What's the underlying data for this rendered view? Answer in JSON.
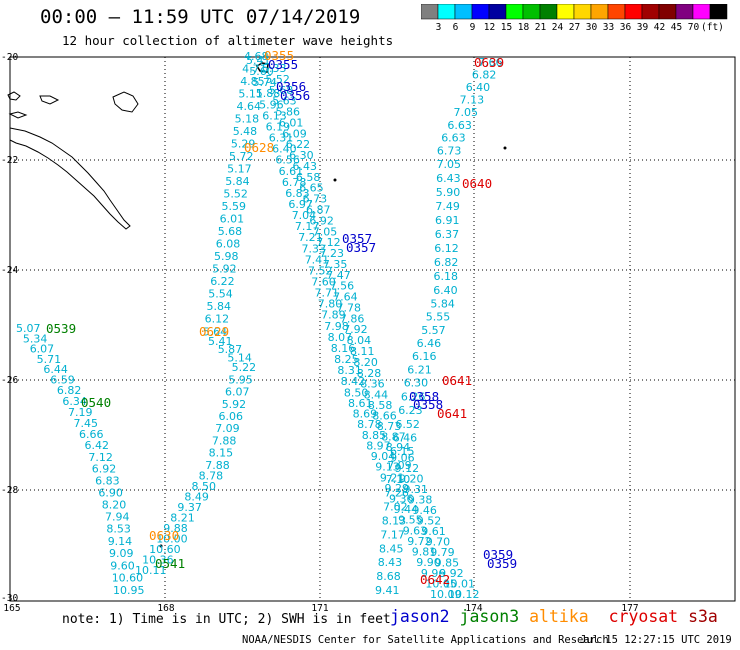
{
  "header": {
    "title": "00:00 – 11:59 UTC 07/14/2019",
    "subtitle": "12 hour collection of altimeter wave heights"
  },
  "colorbar": {
    "colors": [
      "#808080",
      "#00ffff",
      "#00bfff",
      "#0000ff",
      "#0000a0",
      "#00ff00",
      "#00bf00",
      "#008000",
      "#ffff00",
      "#ffd700",
      "#ffa500",
      "#ff4500",
      "#ff0000",
      "#a00000",
      "#800000",
      "#800080",
      "#ff00ff",
      "#000000"
    ],
    "labels": [
      "3",
      "6",
      "9",
      "12",
      "15",
      "18",
      "21",
      "24",
      "27",
      "30",
      "33",
      "36",
      "39",
      "42",
      "45",
      "70",
      "(ft)"
    ]
  },
  "axes": {
    "lat_labels": [
      "-20",
      "-22",
      "-24",
      "-26",
      "-28",
      "-30"
    ],
    "lon_labels": [
      "165",
      "168",
      "171",
      "174",
      "177"
    ]
  },
  "satellite_colors": {
    "jason2": "#0000cc",
    "jason3": "#008000",
    "altika": "#ff8c00",
    "cryosat": "#dd0000",
    "s3a": "#a00000",
    "swh": "#00b0d0"
  },
  "tracks": [
    {
      "id": "t1",
      "values": [
        "4.68",
        "4.71",
        "4.85",
        "5.11",
        "4.64",
        "5.18",
        "5.48",
        "5.29",
        "5.72",
        "5.17",
        "5.84",
        "5.52",
        "5.59",
        "6.01",
        "5.68",
        "6.08",
        "5.98",
        "5.92",
        "6.22",
        "5.54",
        "5.84",
        "6.12",
        "5.64",
        "5.41",
        "5.87",
        "5.14",
        "5.22",
        "5.95",
        "6.07",
        "5.92",
        "6.06",
        "7.09",
        "7.88",
        "8.15",
        "7.88",
        "8.78",
        "8.50",
        "8.49",
        "9.37",
        "8.21",
        "9.88",
        "10.00",
        "10.60",
        "10.36",
        "10.11"
      ]
    },
    {
      "id": "t2",
      "values": [
        "5.07",
        "5.34",
        "6.07",
        "5.71",
        "6.44",
        "6.59",
        "6.82",
        "6.34",
        "7.19",
        "7.45",
        "6.66",
        "6.42",
        "7.12",
        "6.92",
        "6.83",
        "6.90",
        "8.20",
        "7.94",
        "8.53",
        "9.14",
        "9.09",
        "9.60",
        "10.60",
        "10.95"
      ]
    },
    {
      "id": "t3",
      "values": [
        "7.66",
        "6.82",
        "6.40",
        "7.13",
        "7.05",
        "6.63",
        "6.63",
        "6.73",
        "7.05",
        "6.43",
        "5.90",
        "7.49",
        "6.91",
        "6.37",
        "6.12",
        "6.82",
        "6.18",
        "6.40",
        "5.84",
        "5.55",
        "5.57",
        "6.46",
        "6.16",
        "6.21",
        "6.30",
        "6.26",
        "6.23",
        "6.52",
        "6.46",
        "6.15",
        "7.09",
        "7.10",
        "7.26",
        "7.02",
        "8.13",
        "7.17",
        "8.45",
        "8.43",
        "8.68",
        "9.41"
      ]
    },
    {
      "id": "t4",
      "values": [
        "5.33",
        "5.52",
        "5.68",
        "5.63",
        "5.86",
        "6.01",
        "6.09",
        "6.22",
        "6.30",
        "6.43",
        "6.58",
        "6.65",
        "6.73",
        "6.87",
        "6.92",
        "7.05",
        "7.12",
        "7.23",
        "7.35",
        "7.47",
        "7.56",
        "7.64",
        "7.78",
        "7.86",
        "7.92",
        "8.04",
        "8.11",
        "8.20",
        "8.28",
        "8.36",
        "8.44",
        "8.58",
        "8.66",
        "8.73",
        "8.87",
        "8.94",
        "9.06",
        "9.12",
        "9.20",
        "9.31",
        "9.38",
        "9.46",
        "9.52",
        "9.61",
        "9.70",
        "9.79",
        "9.85",
        "9.92",
        "10.01",
        "10.12"
      ]
    },
    {
      "id": "t5",
      "values": [
        "5.41",
        "5.60",
        "5.74",
        "5.88",
        "5.96",
        "6.13",
        "6.19",
        "6.31",
        "6.40",
        "6.56",
        "6.61",
        "6.78",
        "6.83",
        "6.97",
        "7.04",
        "7.17",
        "7.21",
        "7.33",
        "7.41",
        "7.52",
        "7.60",
        "7.71",
        "7.80",
        "7.89",
        "7.98",
        "8.07",
        "8.16",
        "8.25",
        "8.31",
        "8.42",
        "8.50",
        "8.61",
        "8.69",
        "8.78",
        "8.85",
        "8.97",
        "9.04",
        "9.13",
        "9.21",
        "9.29",
        "9.36",
        "9.44",
        "9.55",
        "9.63",
        "9.72",
        "9.81",
        "9.90",
        "9.96",
        "10.05",
        "10.09"
      ]
    }
  ],
  "pass_labels": [
    {
      "id": "p1",
      "text": "0355",
      "sat": "altika"
    },
    {
      "id": "p2",
      "text": "0355",
      "sat": "jason2"
    },
    {
      "id": "p3",
      "text": "0356",
      "sat": "jason2"
    },
    {
      "id": "p4",
      "text": "0356",
      "sat": "jason2"
    },
    {
      "id": "p5",
      "text": "0639",
      "sat": "cryosat"
    },
    {
      "id": "p6",
      "text": "0628",
      "sat": "altika"
    },
    {
      "id": "p7",
      "text": "0640",
      "sat": "cryosat"
    },
    {
      "id": "p8",
      "text": "0357",
      "sat": "jason2"
    },
    {
      "id": "p9",
      "text": "0357",
      "sat": "jason2"
    },
    {
      "id": "p10",
      "text": "0539",
      "sat": "jason3"
    },
    {
      "id": "p11",
      "text": "0629",
      "sat": "altika"
    },
    {
      "id": "p12",
      "text": "0641",
      "sat": "cryosat"
    },
    {
      "id": "p13",
      "text": "0540",
      "sat": "jason3"
    },
    {
      "id": "p14",
      "text": "0358",
      "sat": "jason2"
    },
    {
      "id": "p15",
      "text": "0358",
      "sat": "jason2"
    },
    {
      "id": "p16",
      "text": "0641",
      "sat": "cryosat"
    },
    {
      "id": "p17",
      "text": "0630",
      "sat": "altika"
    },
    {
      "id": "p18",
      "text": "0541",
      "sat": "jason3"
    },
    {
      "id": "p19",
      "text": "0359",
      "sat": "jason2"
    },
    {
      "id": "p20",
      "text": "0359",
      "sat": "jason2"
    },
    {
      "id": "p21",
      "text": "0642",
      "sat": "cryosat"
    }
  ],
  "footer": {
    "note": "note: 1) Time is in UTC; 2) SWH is in feet",
    "legend": {
      "jason2": "jason2",
      "jason3": "jason3",
      "altika": "altika",
      "cryosat": "cryosat",
      "s3a": "s3a"
    },
    "credit": "NOAA/NESDIS Center for Satellite Applications and Research",
    "timestamp": "Jul 15 12:27:15 UTC 2019"
  }
}
